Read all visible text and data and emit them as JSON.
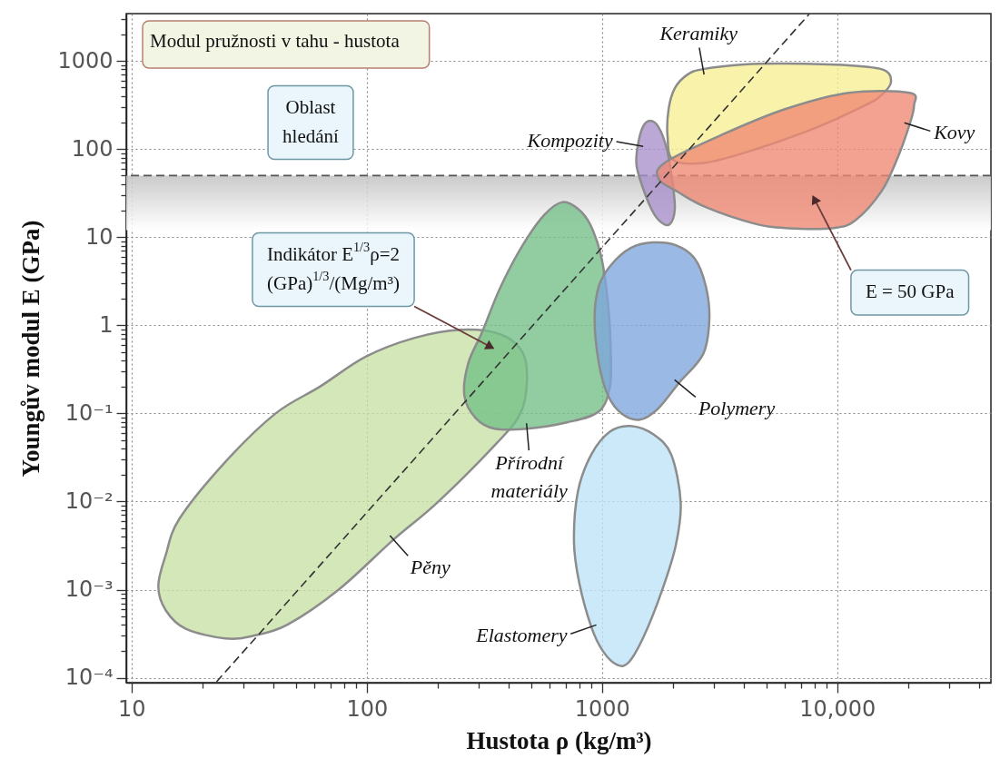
{
  "chart_data": {
    "type": "area",
    "title": "Modul pružnosti v tahu - hustota",
    "xlabel": "Hustota ρ (kg/m³)",
    "ylabel": "Youngův modul E (GPa)",
    "log": "xy",
    "xlim": [
      9.5,
      45000
    ],
    "ylim": [
      8.8e-05,
      3440
    ],
    "xticks": [
      10,
      {
        "value": 20,
        "label": null
      },
      {
        "value": 30,
        "label": null
      },
      {
        "value": 40,
        "label": null
      },
      {
        "value": 50,
        "label": null
      },
      {
        "value": 60,
        "label": null
      },
      {
        "value": 70,
        "label": null
      },
      {
        "value": 80,
        "label": null
      },
      {
        "value": 90,
        "label": null
      },
      100,
      {
        "value": 200,
        "label": null
      },
      {
        "value": 300,
        "label": null
      },
      {
        "value": 400,
        "label": null
      },
      {
        "value": 500,
        "label": null
      },
      {
        "value": 600,
        "label": null
      },
      {
        "value": 700,
        "label": null
      },
      {
        "value": 800,
        "label": null
      },
      {
        "value": 900,
        "label": null
      },
      1000,
      {
        "value": 2000,
        "label": null
      },
      {
        "value": 3000,
        "label": null
      },
      {
        "value": 4000,
        "label": null
      },
      {
        "value": 5000,
        "label": null
      },
      {
        "value": 6000,
        "label": null
      },
      {
        "value": 7000,
        "label": null
      },
      {
        "value": 8000,
        "label": null
      },
      {
        "value": 9000,
        "label": null
      },
      {
        "value": 10000,
        "label": "10,000"
      },
      {
        "value": 20000,
        "label": null
      },
      {
        "value": 30000,
        "label": null
      },
      {
        "value": 40000,
        "label": null
      }
    ],
    "yticks": [
      {
        "value": 0.0001,
        "label": "10⁻⁴"
      },
      {
        "value": 0.0002,
        "label": null
      },
      {
        "value": 0.0003,
        "label": null
      },
      {
        "value": 0.0004,
        "label": null
      },
      {
        "value": 0.0005,
        "label": null
      },
      {
        "value": 0.0006,
        "label": null
      },
      {
        "value": 0.0007,
        "label": null
      },
      {
        "value": 0.0008,
        "label": null
      },
      {
        "value": 0.0009,
        "label": null
      },
      {
        "value": 0.001,
        "label": "10⁻³"
      },
      {
        "value": 0.002,
        "label": null
      },
      {
        "value": 0.003,
        "label": null
      },
      {
        "value": 0.004,
        "label": null
      },
      {
        "value": 0.005,
        "label": null
      },
      {
        "value": 0.006,
        "label": null
      },
      {
        "value": 0.007,
        "label": null
      },
      {
        "value": 0.008,
        "label": null
      },
      {
        "value": 0.009,
        "label": null
      },
      {
        "value": 0.01,
        "label": "10⁻²"
      },
      {
        "value": 0.02,
        "label": null
      },
      {
        "value": 0.03,
        "label": null
      },
      {
        "value": 0.04,
        "label": null
      },
      {
        "value": 0.05,
        "label": null
      },
      {
        "value": 0.06,
        "label": null
      },
      {
        "value": 0.07,
        "label": null
      },
      {
        "value": 0.08,
        "label": null
      },
      {
        "value": 0.09,
        "label": null
      },
      {
        "value": 0.1,
        "label": "10⁻¹"
      },
      {
        "value": 0.2,
        "label": null
      },
      {
        "value": 0.3,
        "label": null
      },
      {
        "value": 0.4,
        "label": null
      },
      {
        "value": 0.5,
        "label": null
      },
      {
        "value": 0.6,
        "label": null
      },
      {
        "value": 0.7,
        "label": null
      },
      {
        "value": 0.8,
        "label": null
      },
      {
        "value": 0.9,
        "label": null
      },
      1,
      {
        "value": 2,
        "label": null
      },
      {
        "value": 3,
        "label": null
      },
      {
        "value": 4,
        "label": null
      },
      {
        "value": 5,
        "label": null
      },
      {
        "value": 6,
        "label": null
      },
      {
        "value": 7,
        "label": null
      },
      {
        "value": 8,
        "label": null
      },
      {
        "value": 9,
        "label": null
      },
      10,
      {
        "value": 20,
        "label": null
      },
      {
        "value": 30,
        "label": null
      },
      {
        "value": 40,
        "label": null
      },
      {
        "value": 50,
        "label": null
      },
      {
        "value": 60,
        "label": null
      },
      {
        "value": 70,
        "label": null
      },
      {
        "value": 80,
        "label": null
      },
      {
        "value": 90,
        "label": null
      },
      100,
      {
        "value": 200,
        "label": null
      },
      {
        "value": 300,
        "label": null
      },
      {
        "value": 400,
        "label": null
      },
      {
        "value": 500,
        "label": null
      },
      {
        "value": 600,
        "label": null
      },
      {
        "value": 700,
        "label": null
      },
      {
        "value": 800,
        "label": null
      },
      {
        "value": 900,
        "label": null
      },
      1000,
      {
        "value": 2000,
        "label": null
      },
      {
        "value": 3000,
        "label": null
      }
    ],
    "grid": true,
    "bands": [
      {
        "axis": "y",
        "from": 12,
        "to": 50,
        "color": "#c2c2c2"
      }
    ],
    "ref_lines": [
      {
        "axis": "y",
        "value": 50,
        "line_style": "dashed",
        "color": "#555555"
      }
    ],
    "series": [
      {
        "name": "Pěny",
        "color": "#c8e0a4",
        "x": [
          130,
          76,
          46,
          33,
          25,
          17,
          14,
          13,
          14,
          16,
          25,
          41,
          63,
          99,
          160,
          250,
          370,
          460,
          480,
          450,
          360,
          200
        ],
        "values": [
          0.0037,
          0.001,
          0.0004,
          0.0003,
          0.00028,
          0.00036,
          0.00058,
          0.0011,
          0.0025,
          0.0064,
          0.028,
          0.1,
          0.2,
          0.44,
          0.72,
          0.89,
          0.79,
          0.49,
          0.23,
          0.1,
          0.047,
          0.0098
        ]
      },
      {
        "name": "Přírodní materiály",
        "color": "#72bf86",
        "x": [
          480,
          350,
          290,
          260,
          270,
          310,
          370,
          460,
          570,
          680,
          790,
          890,
          990,
          1060,
          1090,
          1080,
          970,
          710
        ],
        "values": [
          0.067,
          0.067,
          0.089,
          0.16,
          0.37,
          0.85,
          2.7,
          8.1,
          18,
          25,
          21,
          14,
          6.2,
          1.8,
          0.5,
          0.2,
          0.105,
          0.079
        ]
      },
      {
        "name": "Polymery",
        "color": "#7da5dd",
        "x": [
          2120,
          1730,
          1450,
          1210,
          1060,
          970,
          930,
          970,
          1090,
          1320,
          1640,
          2060,
          2480,
          2760,
          2860,
          2690
        ],
        "values": [
          0.22,
          0.113,
          0.085,
          0.1,
          0.16,
          0.37,
          1.18,
          2.8,
          4.8,
          7.5,
          8.7,
          8.1,
          5.7,
          2.8,
          1.18,
          0.47
        ]
      },
      {
        "name": "Elastomery",
        "color": "#bde3f6",
        "x": [
          900,
          800,
          760,
          790,
          900,
          1080,
          1320,
          1650,
          1970,
          2160,
          2060,
          1800,
          1510,
          1300,
          1160,
          1010
        ],
        "values": [
          0.00038,
          0.0012,
          0.0035,
          0.013,
          0.034,
          0.062,
          0.072,
          0.058,
          0.034,
          0.0098,
          0.0032,
          0.00098,
          0.0003,
          0.00015,
          0.00014,
          0.0002
        ]
      },
      {
        "name": "Kompozity",
        "color": "#a98fcb",
        "x": [
          1420,
          1490,
          1600,
          1740,
          1890,
          1990,
          2040,
          1940,
          1770,
          1620,
          1460,
          1400
        ],
        "values": [
          110,
          177,
          209,
          177,
          98,
          43,
          21,
          14,
          15,
          21,
          43,
          68
        ]
      },
      {
        "name": "Keramiky",
        "color": "#f6ee94",
        "x": [
          2690,
          4010,
          6030,
          11200,
          15800,
          16900,
          15200,
          13100,
          8220,
          4420,
          2760,
          2010,
          1900,
          1920,
          2040,
          2310
        ],
        "values": [
          807,
          910,
          931,
          888,
          789,
          566,
          396,
          312,
          177,
          98,
          70,
          75,
          139,
          285,
          491,
          700
        ]
      },
      {
        "name": "Kovy",
        "color": "#f08872",
        "x": [
          20300,
          17900,
          15400,
          12000,
          9640,
          6030,
          4420,
          2760,
          2100,
          1740,
          1850,
          3250,
          6030,
          11200,
          20300,
          21200
        ],
        "values": [
          190,
          75,
          33,
          15.7,
          12.7,
          12.7,
          14.3,
          21.9,
          32.7,
          45.7,
          70,
          146,
          285,
          435,
          435,
          312
        ]
      },
      {
        "type": "line",
        "color": "#333333",
        "line_style": "dashed",
        "x": [
          23,
          7600
        ],
        "values": [
          9e-05,
          3400
        ]
      }
    ],
    "annotations": [
      "Oblast hledání",
      "Indikátor E$^{1/3}$ρ=2 (GPa)$^{1/3}$/(Mg/m³)",
      {
        "text": "E = 50 GPa",
        "x": 8000,
        "y": 27
      }
    ]
  }
}
